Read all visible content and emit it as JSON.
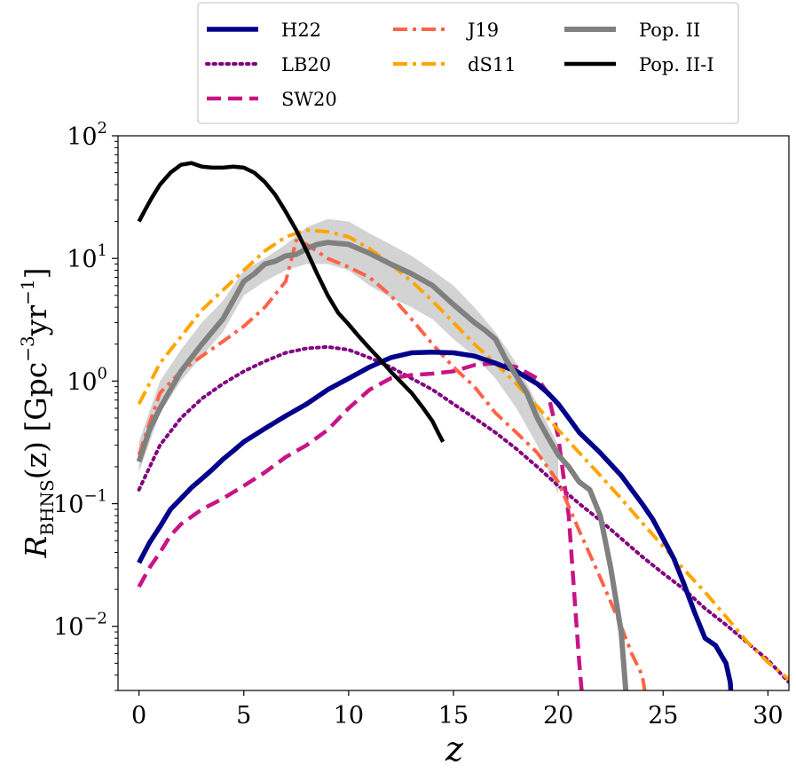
{
  "chart_data": {
    "type": "line",
    "title": "",
    "xlabel": "z",
    "ylabel": {
      "main": "R",
      "sub": "BHNS",
      "arg": "(z)",
      "units_prefix": "[Gpc",
      "units_exp1": "−3",
      "units_mid": "yr",
      "units_exp2": "−1",
      "units_suffix": "]"
    },
    "xlim": [
      -1,
      31
    ],
    "ylim": [
      0.003,
      100
    ],
    "yscale": "log",
    "grid": false,
    "legend_position": "top-center",
    "x_ticks": [
      {
        "value": 0,
        "label": "0"
      },
      {
        "value": 5,
        "label": "5"
      },
      {
        "value": 10,
        "label": "10"
      },
      {
        "value": 15,
        "label": "15"
      },
      {
        "value": 20,
        "label": "20"
      },
      {
        "value": 25,
        "label": "25"
      },
      {
        "value": 30,
        "label": "30"
      }
    ],
    "y_ticks": [
      {
        "value": 0.01,
        "base": "10",
        "exp": "−2"
      },
      {
        "value": 0.1,
        "base": "10",
        "exp": "−1"
      },
      {
        "value": 1,
        "base": "10",
        "exp": "0"
      },
      {
        "value": 10,
        "base": "10",
        "exp": "1"
      },
      {
        "value": 100,
        "base": "10",
        "exp": "2"
      }
    ],
    "band": {
      "color": "#d3d3d3",
      "x": [
        0,
        1,
        2,
        3,
        4,
        5,
        6,
        7,
        8,
        9,
        10,
        11,
        12,
        13,
        14,
        15,
        16,
        17,
        18,
        19,
        20
      ],
      "lower": [
        0.18,
        0.55,
        1.0,
        1.6,
        2.5,
        5.0,
        6.5,
        8.0,
        9.0,
        9.0,
        8.0,
        6.0,
        4.8,
        4.0,
        3.2,
        2.2,
        1.6,
        1.05,
        0.6,
        0.3,
        0.12
      ],
      "upper": [
        0.32,
        1.0,
        1.8,
        3.0,
        4.5,
        8.0,
        10.0,
        13.0,
        18.0,
        21.0,
        20.0,
        16.0,
        13.0,
        10.5,
        8.0,
        6.0,
        4.0,
        2.5,
        1.4,
        0.65,
        0.3
      ]
    },
    "series": [
      {
        "name": "H22",
        "color": "#00008b",
        "width": 5.5,
        "dash": "",
        "x": [
          0,
          0.5,
          1,
          1.5,
          2,
          2.5,
          3,
          3.5,
          4,
          4.5,
          5,
          6,
          7,
          8,
          9,
          10,
          11,
          12,
          13,
          14,
          15,
          16,
          17,
          18,
          19,
          19.5,
          20,
          20.5,
          21,
          22,
          23,
          24,
          24.5,
          25,
          25.5,
          26,
          26.5,
          27,
          27.5,
          28,
          28.2,
          28.3
        ],
        "y": [
          0.033,
          0.048,
          0.065,
          0.09,
          0.11,
          0.135,
          0.16,
          0.19,
          0.23,
          0.27,
          0.32,
          0.41,
          0.52,
          0.65,
          0.85,
          1.05,
          1.3,
          1.55,
          1.7,
          1.72,
          1.7,
          1.6,
          1.4,
          1.2,
          0.95,
          0.8,
          0.65,
          0.5,
          0.38,
          0.26,
          0.17,
          0.1,
          0.075,
          0.052,
          0.036,
          0.022,
          0.013,
          0.008,
          0.007,
          0.005,
          0.0035,
          0.002
        ]
      },
      {
        "name": "LB20",
        "color": "#800080",
        "width": 4,
        "dash": "2.5 5",
        "x": [
          0,
          1,
          2,
          3,
          4,
          5,
          6,
          7,
          8,
          9,
          10,
          11,
          12,
          13,
          14,
          15,
          16,
          17,
          18,
          19,
          20,
          21,
          22,
          23,
          24,
          25,
          26,
          27,
          28,
          29,
          30,
          31
        ],
        "y": [
          0.13,
          0.3,
          0.5,
          0.72,
          0.95,
          1.2,
          1.45,
          1.7,
          1.85,
          1.9,
          1.8,
          1.55,
          1.3,
          1.05,
          0.85,
          0.65,
          0.5,
          0.38,
          0.28,
          0.2,
          0.14,
          0.1,
          0.073,
          0.052,
          0.037,
          0.027,
          0.02,
          0.014,
          0.0103,
          0.0074,
          0.0053,
          0.0035
        ]
      },
      {
        "name": "SW20",
        "color": "#c71585",
        "width": 4.5,
        "dash": "16 8",
        "x": [
          0,
          0.5,
          1,
          1.5,
          2,
          3,
          4,
          5,
          6,
          7,
          8,
          9,
          10,
          11,
          12,
          13,
          14,
          15,
          16,
          17,
          18,
          19,
          19.5,
          20,
          20.5,
          20.8,
          21,
          21.2
        ],
        "y": [
          0.021,
          0.03,
          0.04,
          0.055,
          0.068,
          0.09,
          0.11,
          0.14,
          0.18,
          0.24,
          0.3,
          0.4,
          0.6,
          0.85,
          1.05,
          1.12,
          1.15,
          1.2,
          1.35,
          1.4,
          1.3,
          1.05,
          0.8,
          0.35,
          0.08,
          0.015,
          0.005,
          0.002
        ]
      },
      {
        "name": "J19",
        "color": "#ff6347",
        "width": 4,
        "dash": "16 6 4 6",
        "x": [
          0,
          0.5,
          1,
          2,
          3,
          4,
          5,
          6,
          7,
          7.5,
          8,
          9,
          10,
          11,
          12,
          13,
          14,
          15,
          16,
          17,
          18,
          19,
          20,
          21,
          22,
          23,
          23.5,
          24,
          24.3
        ],
        "y": [
          0.25,
          0.45,
          0.8,
          1.2,
          1.6,
          2.1,
          2.8,
          4.0,
          6.5,
          14.0,
          13.0,
          10.0,
          8.5,
          7.0,
          5.0,
          3.2,
          2.0,
          1.3,
          0.9,
          0.55,
          0.38,
          0.26,
          0.15,
          0.06,
          0.025,
          0.01,
          0.006,
          0.004,
          0.002
        ]
      },
      {
        "name": "dS11",
        "color": "#ffa500",
        "width": 4,
        "dash": "16 6 4 6",
        "x": [
          0,
          1,
          2,
          3,
          4,
          5,
          6,
          7,
          8,
          9,
          10,
          11,
          12,
          13,
          14,
          15,
          16,
          17,
          18,
          19,
          20,
          21,
          22,
          23,
          24,
          25,
          26,
          27,
          28,
          29,
          30,
          31
        ],
        "y": [
          0.65,
          1.4,
          2.3,
          3.8,
          5.5,
          8.0,
          11.5,
          15.0,
          17.0,
          16.5,
          15.0,
          12.0,
          9.0,
          6.5,
          4.5,
          3.0,
          2.0,
          1.4,
          0.95,
          0.62,
          0.4,
          0.26,
          0.17,
          0.11,
          0.07,
          0.045,
          0.029,
          0.019,
          0.012,
          0.0075,
          0.0051,
          0.0037
        ]
      },
      {
        "name": "Pop. II",
        "color": "#808080",
        "width": 6,
        "dash": "",
        "x": [
          0,
          0.5,
          1,
          2,
          3,
          4,
          5,
          5.5,
          6,
          6.5,
          7,
          7.5,
          8,
          8.5,
          9,
          10,
          11,
          12,
          13,
          14,
          15,
          16,
          16.5,
          17,
          17.5,
          18,
          18.5,
          19,
          19.5,
          20,
          20.5,
          21,
          21.5,
          22,
          22.5,
          23,
          23.3
        ],
        "y": [
          0.22,
          0.4,
          0.6,
          1.2,
          2.0,
          3.2,
          6.5,
          7.5,
          9.0,
          9.5,
          10.5,
          10.8,
          12.0,
          13.0,
          13.5,
          13.0,
          11.0,
          9.0,
          7.5,
          6.0,
          4.2,
          3.0,
          2.6,
          2.2,
          1.5,
          1.1,
          0.8,
          0.5,
          0.35,
          0.25,
          0.2,
          0.15,
          0.13,
          0.08,
          0.03,
          0.009,
          0.002
        ]
      },
      {
        "name": "Pop. II-I",
        "color": "#000000",
        "width": 4.5,
        "dash": "",
        "x": [
          0,
          0.3,
          0.6,
          1,
          1.5,
          2,
          2.5,
          3,
          3.5,
          4,
          4.5,
          5,
          5.5,
          6,
          6.5,
          7,
          7.5,
          8,
          8.5,
          9,
          9.5,
          10,
          10.5,
          11,
          11.5,
          12,
          12.5,
          13,
          13.5,
          14,
          14.3,
          14.5
        ],
        "y": [
          20.0,
          25.0,
          31.0,
          40.0,
          50.0,
          58.0,
          60.0,
          56.0,
          55.0,
          55.0,
          56.0,
          55.0,
          50.0,
          42.0,
          33.0,
          24.0,
          17.0,
          11.5,
          7.5,
          5.0,
          3.6,
          2.9,
          2.3,
          1.85,
          1.5,
          1.2,
          0.98,
          0.8,
          0.62,
          0.47,
          0.37,
          0.32
        ]
      }
    ]
  }
}
